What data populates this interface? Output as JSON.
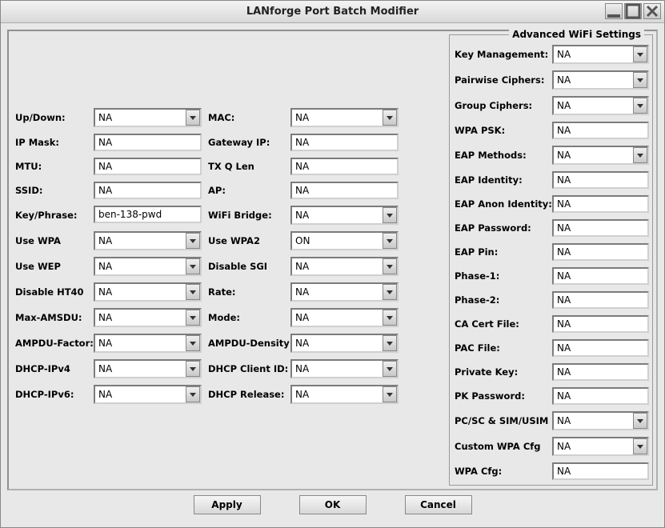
{
  "window": {
    "title": "LANforge Port Batch Modifier"
  },
  "left": {
    "up_down": {
      "label": "Up/Down:",
      "value": "NA",
      "type": "combo"
    },
    "mac": {
      "label": "MAC:",
      "value": "NA",
      "type": "combo"
    },
    "ip_mask": {
      "label": "IP Mask:",
      "value": "NA",
      "type": "text"
    },
    "gateway_ip": {
      "label": "Gateway IP:",
      "value": "NA",
      "type": "text"
    },
    "mtu": {
      "label": "MTU:",
      "value": "NA",
      "type": "text"
    },
    "txq_len": {
      "label": "TX Q Len",
      "value": "NA",
      "type": "text"
    },
    "ssid": {
      "label": "SSID:",
      "value": "NA",
      "type": "text"
    },
    "ap": {
      "label": "AP:",
      "value": "NA",
      "type": "text"
    },
    "key_phrase": {
      "label": "Key/Phrase:",
      "value": "ben-138-pwd",
      "type": "text"
    },
    "wifi_bridge": {
      "label": "WiFi Bridge:",
      "value": "NA",
      "type": "combo"
    },
    "use_wpa": {
      "label": "Use WPA",
      "value": "NA",
      "type": "combo"
    },
    "use_wpa2": {
      "label": "Use WPA2",
      "value": "ON",
      "type": "combo"
    },
    "use_wep": {
      "label": "Use WEP",
      "value": "NA",
      "type": "combo"
    },
    "disable_sgi": {
      "label": "Disable SGI",
      "value": "NA",
      "type": "combo"
    },
    "disable_ht40": {
      "label": "Disable HT40",
      "value": "NA",
      "type": "combo"
    },
    "rate": {
      "label": "Rate:",
      "value": "NA",
      "type": "combo"
    },
    "max_amsdu": {
      "label": "Max-AMSDU:",
      "value": "NA",
      "type": "combo"
    },
    "mode": {
      "label": "Mode:",
      "value": "NA",
      "type": "combo"
    },
    "ampdu_factor": {
      "label": "AMPDU-Factor:",
      "value": "NA",
      "type": "combo"
    },
    "ampdu_density": {
      "label": "AMPDU-Density:",
      "value": "NA",
      "type": "combo"
    },
    "dhcp_ipv4": {
      "label": "DHCP-IPv4",
      "value": "NA",
      "type": "combo"
    },
    "dhcp_client_id": {
      "label": "DHCP Client ID:",
      "value": "NA",
      "type": "combo"
    },
    "dhcp_ipv6": {
      "label": "DHCP-IPv6:",
      "value": "NA",
      "type": "combo"
    },
    "dhcp_release": {
      "label": "DHCP Release:",
      "value": "NA",
      "type": "combo"
    }
  },
  "adv": {
    "legend": "Advanced WiFi Settings",
    "key_mgmt": {
      "label": "Key Management:",
      "value": "NA",
      "type": "combo"
    },
    "pairwise": {
      "label": "Pairwise Ciphers:",
      "value": "NA",
      "type": "combo"
    },
    "group": {
      "label": "Group Ciphers:",
      "value": "NA",
      "type": "combo"
    },
    "wpa_psk": {
      "label": "WPA PSK:",
      "value": "NA",
      "type": "text"
    },
    "eap_methods": {
      "label": "EAP Methods:",
      "value": "NA",
      "type": "combo"
    },
    "eap_identity": {
      "label": "EAP Identity:",
      "value": "NA",
      "type": "text"
    },
    "eap_anon": {
      "label": "EAP Anon Identity:",
      "value": "NA",
      "type": "text"
    },
    "eap_password": {
      "label": "EAP Password:",
      "value": "NA",
      "type": "text"
    },
    "eap_pin": {
      "label": "EAP Pin:",
      "value": "NA",
      "type": "text"
    },
    "phase1": {
      "label": "Phase-1:",
      "value": "NA",
      "type": "text"
    },
    "phase2": {
      "label": "Phase-2:",
      "value": "NA",
      "type": "text"
    },
    "ca_cert": {
      "label": "CA Cert File:",
      "value": "NA",
      "type": "text"
    },
    "pac_file": {
      "label": "PAC File:",
      "value": "NA",
      "type": "text"
    },
    "private_key": {
      "label": "Private Key:",
      "value": "NA",
      "type": "text"
    },
    "pk_password": {
      "label": "PK Password:",
      "value": "NA",
      "type": "text"
    },
    "pcsc": {
      "label": "PC/SC & SIM/USIM",
      "value": "NA",
      "type": "combo"
    },
    "custom_wpa": {
      "label": "Custom WPA Cfg",
      "value": "NA",
      "type": "combo"
    },
    "wpa_cfg": {
      "label": "WPA Cfg:",
      "value": "NA",
      "type": "text"
    }
  },
  "buttons": {
    "apply": "Apply",
    "ok": "OK",
    "cancel": "Cancel"
  }
}
